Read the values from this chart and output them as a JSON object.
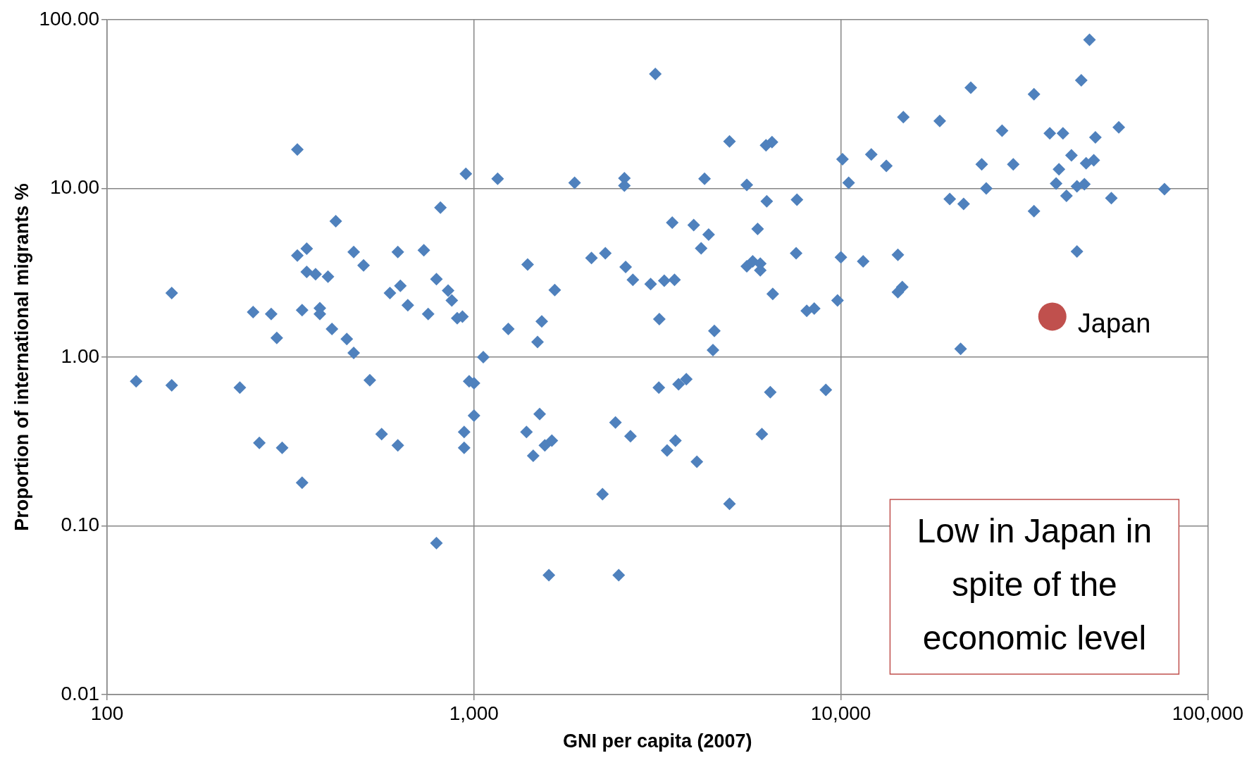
{
  "chart_data": {
    "type": "scatter",
    "xlabel": "GNI per capita (2007)",
    "ylabel": "Proportion of international migrants %",
    "log": "xy",
    "xlim": [
      100,
      100000
    ],
    "ylim": [
      0.01,
      100
    ],
    "xticks": [
      {
        "value": 100,
        "label": "100"
      },
      {
        "value": 1000,
        "label": "1,000"
      },
      {
        "value": 10000,
        "label": "10,000"
      },
      {
        "value": 100000,
        "label": "100,000"
      }
    ],
    "yticks": [
      {
        "value": 0.01,
        "label": "0.01"
      },
      {
        "value": 0.1,
        "label": "0.10"
      },
      {
        "value": 1,
        "label": "1.00"
      },
      {
        "value": 10,
        "label": "10.00"
      },
      {
        "value": 100,
        "label": "100.00"
      }
    ],
    "grid": true,
    "marker": "diamond",
    "series": [
      {
        "color": "#4f81bd",
        "x": [
          120,
          150,
          150,
          230,
          250,
          260,
          280,
          290,
          300,
          330,
          330,
          340,
          340,
          350,
          350,
          370,
          380,
          380,
          400,
          410,
          420,
          450,
          470,
          470,
          500,
          520,
          560,
          590,
          620,
          620,
          630,
          660,
          730,
          750,
          790,
          790,
          810,
          850,
          870,
          900,
          930,
          940,
          940,
          950,
          970,
          1000,
          1000,
          1060,
          1160,
          1240,
          1400,
          1390,
          1450,
          1490,
          1510,
          1530,
          1560,
          1600,
          1630,
          1660,
          1880,
          2090,
          2240,
          2280,
          2430,
          2480,
          2570,
          2570,
          2590,
          2670,
          2710,
          3030,
          3120,
          3200,
          3190,
          3300,
          3360,
          3470,
          3520,
          3540,
          3610,
          3790,
          3970,
          4050,
          4160,
          4250,
          4360,
          4480,
          4520,
          4970,
          4970,
          5540,
          5540,
          5750,
          5930,
          6030,
          6030,
          6090,
          6250,
          6280,
          6490,
          6420,
          6520,
          7550,
          7590,
          8070,
          8460,
          9100,
          9790,
          10000,
          10100,
          10500,
          11500,
          12100,
          13300,
          14300,
          14300,
          14800,
          14700,
          18600,
          19800,
          21200,
          21600,
          22600,
          24200,
          24900,
          27500,
          29500,
          33600,
          33600,
          37100,
          38600,
          39300,
          40300,
          41200,
          42500,
          44000,
          44000,
          45200,
          46100,
          46600,
          47600,
          48900,
          49400,
          54600,
          57200,
          76200
        ],
        "values": [
          0.72,
          2.4,
          0.68,
          0.66,
          1.85,
          0.31,
          1.8,
          1.3,
          0.29,
          17,
          4.0,
          1.9,
          0.18,
          4.4,
          3.2,
          3.1,
          1.95,
          1.8,
          3.0,
          1.47,
          6.4,
          1.28,
          4.2,
          1.06,
          3.5,
          0.73,
          0.35,
          2.4,
          4.2,
          0.3,
          2.65,
          2.03,
          4.3,
          1.8,
          2.9,
          0.079,
          7.7,
          2.48,
          2.17,
          1.7,
          1.74,
          0.36,
          0.29,
          12.2,
          0.72,
          0.7,
          0.45,
          1.0,
          11.4,
          1.47,
          3.54,
          0.36,
          0.26,
          1.23,
          0.46,
          1.63,
          0.3,
          0.051,
          0.32,
          2.5,
          10.8,
          3.87,
          0.154,
          4.13,
          0.41,
          0.051,
          11.5,
          10.4,
          3.42,
          0.34,
          2.87,
          2.71,
          47.7,
          1.68,
          0.66,
          2.84,
          0.28,
          6.28,
          2.87,
          0.32,
          0.69,
          0.74,
          6.07,
          0.24,
          4.42,
          11.4,
          5.33,
          1.1,
          1.43,
          19.0,
          0.135,
          10.5,
          3.46,
          3.7,
          5.75,
          3.58,
          3.27,
          0.35,
          18.0,
          8.4,
          18.8,
          0.62,
          2.37,
          4.13,
          8.57,
          1.88,
          1.94,
          0.64,
          2.17,
          3.91,
          14.9,
          10.8,
          3.7,
          15.9,
          13.6,
          4.04,
          2.43,
          26.5,
          2.6,
          25.1,
          8.66,
          1.12,
          8.1,
          39.5,
          13.9,
          10.0,
          22.0,
          13.9,
          36.2,
          7.33,
          21.2,
          10.7,
          13.0,
          21.2,
          9.05,
          15.7,
          4.23,
          10.3,
          43.7,
          10.6,
          14.1,
          76,
          14.7,
          20.1,
          8.76,
          23.0,
          9.9
        ]
      },
      {
        "name": "Japan",
        "color": "#c0504d",
        "marker": "circle",
        "x": [
          37700
        ],
        "values": [
          1.74
        ]
      }
    ],
    "annotations": [
      "Low in Japan in spite of the economic level"
    ]
  }
}
